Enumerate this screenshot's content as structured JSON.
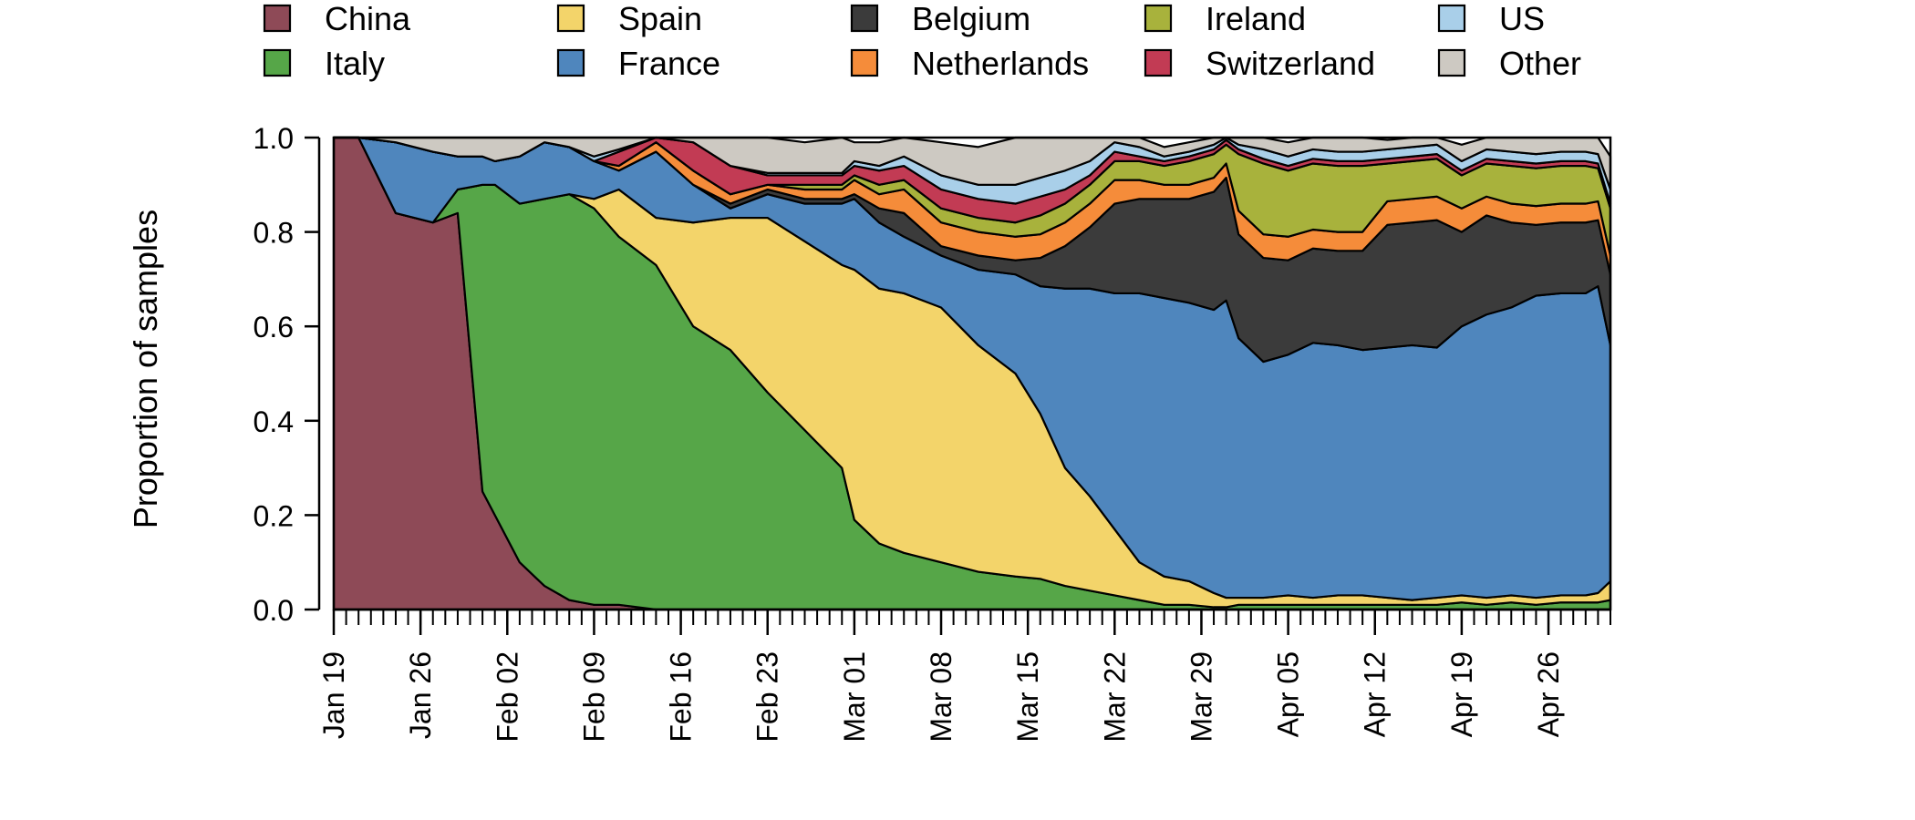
{
  "chart_data": {
    "type": "area",
    "stacked": true,
    "normalized": true,
    "xlabel": "",
    "ylabel": "Proportion of samples",
    "ylim": [
      0,
      1
    ],
    "yticks": [
      "0.0",
      "0.2",
      "0.4",
      "0.6",
      "0.8",
      "1.0"
    ],
    "xrange": [
      "Jan 19",
      "May 01"
    ],
    "xtick_labels": [
      "Jan 19",
      "Jan 26",
      "Feb 02",
      "Feb 09",
      "Feb 16",
      "Feb 23",
      "Mar 01",
      "Mar 08",
      "Mar 15",
      "Mar 22",
      "Mar 29",
      "Apr 05",
      "Apr 12",
      "Apr 19",
      "Apr 26"
    ],
    "minor_ticks": "daily",
    "legend_position": "top",
    "x": [
      "Jan 19",
      "Jan 21",
      "Jan 24",
      "Jan 27",
      "Jan 29",
      "Jan 31",
      "Feb 01",
      "Feb 03",
      "Feb 05",
      "Feb 07",
      "Feb 09",
      "Feb 11",
      "Feb 14",
      "Feb 17",
      "Feb 20",
      "Feb 23",
      "Feb 26",
      "Feb 29",
      "Mar 01",
      "Mar 03",
      "Mar 05",
      "Mar 08",
      "Mar 11",
      "Mar 14",
      "Mar 16",
      "Mar 18",
      "Mar 20",
      "Mar 22",
      "Mar 24",
      "Mar 26",
      "Mar 28",
      "Mar 30",
      "Mar 31",
      "Apr 01",
      "Apr 03",
      "Apr 05",
      "Apr 07",
      "Apr 09",
      "Apr 11",
      "Apr 13",
      "Apr 15",
      "Apr 17",
      "Apr 19",
      "Apr 21",
      "Apr 23",
      "Apr 25",
      "Apr 27",
      "Apr 29",
      "Apr 30",
      "May 01"
    ],
    "series": [
      {
        "name": "China",
        "color": "#8e4a57",
        "values": [
          1,
          1,
          0.84,
          0.82,
          0.84,
          0.25,
          0.2,
          0.1,
          0.05,
          0.02,
          0.01,
          0.01,
          0,
          0,
          0,
          0,
          0,
          0,
          0,
          0,
          0,
          0,
          0,
          0,
          0,
          0,
          0,
          0,
          0,
          0,
          0,
          0,
          0,
          0,
          0,
          0,
          0,
          0,
          0,
          0,
          0,
          0,
          0,
          0,
          0,
          0,
          0,
          0,
          0,
          0
        ]
      },
      {
        "name": "Italy",
        "color": "#56a648",
        "values": [
          0,
          0,
          0,
          0,
          0.05,
          0.65,
          0.7,
          0.76,
          0.82,
          0.86,
          0.84,
          0.78,
          0.73,
          0.6,
          0.55,
          0.46,
          0.38,
          0.3,
          0.19,
          0.14,
          0.12,
          0.1,
          0.08,
          0.07,
          0.065,
          0.05,
          0.04,
          0.03,
          0.02,
          0.01,
          0.01,
          0.005,
          0.005,
          0.01,
          0.01,
          0.01,
          0.01,
          0.01,
          0.01,
          0.01,
          0.01,
          0.01,
          0.015,
          0.01,
          0.015,
          0.01,
          0.015,
          0.015,
          0.015,
          0.02
        ]
      },
      {
        "name": "Spain",
        "color": "#f3d46a",
        "values": [
          0,
          0,
          0,
          0,
          0,
          0,
          0,
          0,
          0,
          0,
          0.02,
          0.1,
          0.1,
          0.22,
          0.28,
          0.37,
          0.4,
          0.43,
          0.53,
          0.54,
          0.55,
          0.54,
          0.48,
          0.43,
          0.35,
          0.25,
          0.2,
          0.14,
          0.08,
          0.06,
          0.05,
          0.03,
          0.02,
          0.015,
          0.015,
          0.02,
          0.015,
          0.02,
          0.02,
          0.015,
          0.01,
          0.015,
          0.015,
          0.015,
          0.015,
          0.015,
          0.015,
          0.015,
          0.02,
          0.04
        ]
      },
      {
        "name": "France",
        "color": "#4f86bd",
        "values": [
          0,
          0,
          0.15,
          0.15,
          0.07,
          0.06,
          0.05,
          0.1,
          0.12,
          0.1,
          0.08,
          0.04,
          0.14,
          0.08,
          0.02,
          0.05,
          0.08,
          0.13,
          0.15,
          0.14,
          0.12,
          0.11,
          0.16,
          0.21,
          0.27,
          0.38,
          0.44,
          0.5,
          0.57,
          0.59,
          0.59,
          0.6,
          0.63,
          0.55,
          0.5,
          0.51,
          0.54,
          0.53,
          0.52,
          0.53,
          0.54,
          0.53,
          0.57,
          0.6,
          0.61,
          0.64,
          0.64,
          0.64,
          0.65,
          0.5
        ]
      },
      {
        "name": "Belgium",
        "color": "#3b3b3b",
        "values": [
          0,
          0,
          0,
          0,
          0,
          0,
          0,
          0,
          0,
          0,
          0,
          0,
          0,
          0,
          0.01,
          0.01,
          0.01,
          0.01,
          0.01,
          0.03,
          0.05,
          0.02,
          0.03,
          0.03,
          0.06,
          0.09,
          0.13,
          0.19,
          0.2,
          0.21,
          0.22,
          0.25,
          0.26,
          0.22,
          0.22,
          0.2,
          0.2,
          0.2,
          0.21,
          0.26,
          0.26,
          0.27,
          0.2,
          0.21,
          0.18,
          0.15,
          0.15,
          0.15,
          0.14,
          0.15
        ]
      },
      {
        "name": "Netherlands",
        "color": "#f58c3a",
        "values": [
          0,
          0,
          0,
          0,
          0,
          0,
          0,
          0,
          0,
          0,
          0,
          0.01,
          0.02,
          0.03,
          0.02,
          0.01,
          0.02,
          0.02,
          0.03,
          0.03,
          0.05,
          0.05,
          0.05,
          0.05,
          0.05,
          0.05,
          0.05,
          0.05,
          0.04,
          0.03,
          0.03,
          0.03,
          0.03,
          0.05,
          0.05,
          0.05,
          0.04,
          0.04,
          0.04,
          0.05,
          0.05,
          0.05,
          0.05,
          0.04,
          0.04,
          0.04,
          0.04,
          0.04,
          0.04,
          0.04
        ]
      },
      {
        "name": "Ireland",
        "color": "#a8b23c",
        "values": [
          0,
          0,
          0,
          0,
          0,
          0,
          0,
          0,
          0,
          0,
          0,
          0,
          0,
          0,
          0,
          0,
          0.01,
          0.01,
          0.01,
          0.02,
          0.02,
          0.03,
          0.03,
          0.03,
          0.04,
          0.04,
          0.04,
          0.04,
          0.04,
          0.04,
          0.05,
          0.05,
          0.04,
          0.12,
          0.15,
          0.14,
          0.14,
          0.14,
          0.14,
          0.08,
          0.08,
          0.08,
          0.07,
          0.07,
          0.08,
          0.08,
          0.08,
          0.08,
          0.07,
          0.1
        ]
      },
      {
        "name": "Switzerland",
        "color": "#c23b54",
        "values": [
          0,
          0,
          0,
          0,
          0,
          0,
          0,
          0,
          0,
          0,
          0,
          0.03,
          0.01,
          0.06,
          0.06,
          0.02,
          0.02,
          0.02,
          0.02,
          0.03,
          0.03,
          0.04,
          0.04,
          0.04,
          0.04,
          0.03,
          0.02,
          0.02,
          0.01,
          0.01,
          0.01,
          0.01,
          0.01,
          0.01,
          0.01,
          0.01,
          0.01,
          0.01,
          0.01,
          0.01,
          0.01,
          0.01,
          0.01,
          0.01,
          0.01,
          0.01,
          0.01,
          0.01,
          0.01,
          0.01
        ]
      },
      {
        "name": "US",
        "color": "#a9cfe9",
        "values": [
          0,
          0,
          0,
          0,
          0,
          0,
          0,
          0,
          0,
          0,
          0.01,
          0.005,
          0,
          0,
          0,
          0.005,
          0.005,
          0.005,
          0.01,
          0.01,
          0.02,
          0.03,
          0.03,
          0.04,
          0.04,
          0.04,
          0.03,
          0.02,
          0.02,
          0.01,
          0.01,
          0.01,
          0.005,
          0.01,
          0.02,
          0.02,
          0.02,
          0.02,
          0.02,
          0.02,
          0.02,
          0.02,
          0.02,
          0.02,
          0.02,
          0.02,
          0.02,
          0.02,
          0.02,
          0.03
        ]
      },
      {
        "name": "Other",
        "color": "#cdc9c2",
        "values": [
          0,
          0,
          0.01,
          0.03,
          0.04,
          0.04,
          0.05,
          0.04,
          0.01,
          0.02,
          0.04,
          0.025,
          0.01,
          0.01,
          0.06,
          0.075,
          0.065,
          0.075,
          0.04,
          0.05,
          0.04,
          0.07,
          0.08,
          0.1,
          0.095,
          0.08,
          0.05,
          0.01,
          0.02,
          0.02,
          0.02,
          0.015,
          0.01,
          0.015,
          0.03,
          0.03,
          0.03,
          0.03,
          0.03,
          0.02,
          0.02,
          0.02,
          0.035,
          0.035,
          0.035,
          0.035,
          0.035,
          0.035,
          0.045,
          0.07
        ]
      }
    ]
  }
}
